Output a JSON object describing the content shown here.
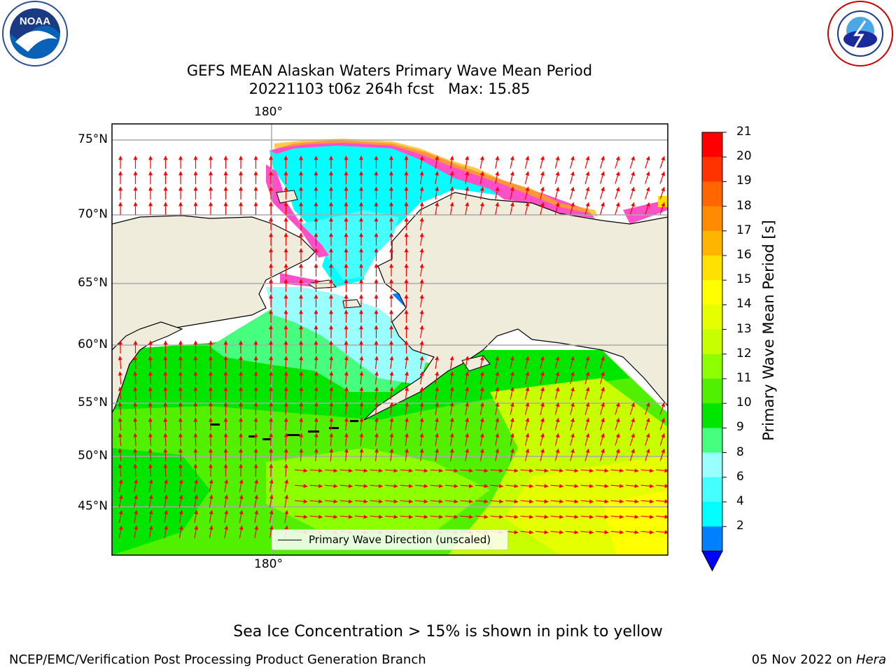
{
  "title_line1": "GEFS MEAN Alaskan Waters Primary Wave Mean Period",
  "title_line2": "20221103 t06z 264h fcst   Max: 15.85",
  "map": {
    "lon_label_top": "180°",
    "lon_label_bottom": "180°",
    "lat_labels": [
      "75°N",
      "70°N",
      "65°N",
      "60°N",
      "55°N",
      "50°N",
      "45°N"
    ],
    "legend_label": "Primary Wave Direction (unscaled)",
    "land_color": "#efecdc",
    "arrow_color": "#ff0000"
  },
  "colorbar": {
    "label": "Primary Wave Mean Period [s]",
    "ticks": [
      "21",
      "20",
      "19",
      "18",
      "17",
      "16",
      "15",
      "14",
      "13",
      "12",
      "11",
      "10",
      "9",
      "8",
      "6",
      "4",
      "2"
    ],
    "colors": [
      "#ff0000",
      "#ff3300",
      "#ff6600",
      "#ff8c00",
      "#ffb400",
      "#ffe000",
      "#ffff00",
      "#e6ff00",
      "#c8ff00",
      "#8cff00",
      "#50f000",
      "#00e600",
      "#46ff7f",
      "#9affff",
      "#46ffff",
      "#00ffff",
      "#0080ff"
    ],
    "under_color": "#0000ff"
  },
  "logos": {
    "left": "NOAA",
    "right": "NATIONAL WEATHER SERVICE"
  },
  "footer_note": "Sea Ice Concentration > 15% is shown in pink to yellow",
  "credit": "NCEP/EMC/Verification Post Processing Product Generation Branch",
  "date_prefix": "05 Nov 2022 on ",
  "date_machine": "Hera"
}
